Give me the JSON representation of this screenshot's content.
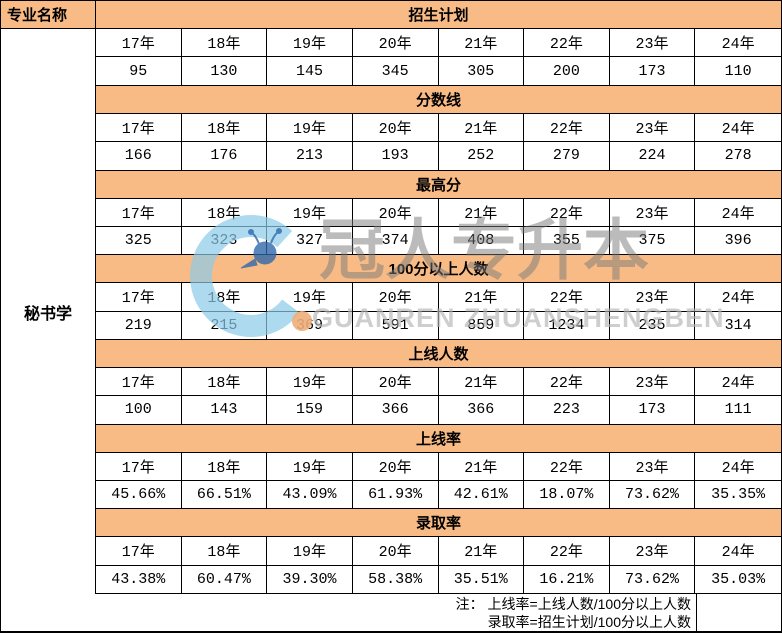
{
  "table": {
    "corner_header": "专业名称",
    "major_name": "秘书学"
  },
  "years": [
    "17年",
    "18年",
    "19年",
    "20年",
    "21年",
    "22年",
    "23年",
    "24年"
  ],
  "sections": [
    {
      "title": "招生计划",
      "values": [
        "95",
        "130",
        "145",
        "345",
        "305",
        "200",
        "173",
        "110"
      ]
    },
    {
      "title": "分数线",
      "values": [
        "166",
        "176",
        "213",
        "193",
        "252",
        "279",
        "224",
        "278"
      ]
    },
    {
      "title": "最高分",
      "values": [
        "325",
        "323",
        "327",
        "374",
        "408",
        "355",
        "375",
        "396"
      ]
    },
    {
      "title": "100分以上人数",
      "values": [
        "219",
        "215",
        "369",
        "591",
        "859",
        "1234",
        "235",
        "314"
      ]
    },
    {
      "title": "上线人数",
      "values": [
        "100",
        "143",
        "159",
        "366",
        "366",
        "223",
        "173",
        "111"
      ]
    },
    {
      "title": "上线率",
      "values": [
        "45.66%",
        "66.51%",
        "43.09%",
        "61.93%",
        "42.61%",
        "18.07%",
        "73.62%",
        "35.35%"
      ]
    },
    {
      "title": "录取率",
      "values": [
        "43.38%",
        "60.47%",
        "39.30%",
        "58.38%",
        "35.51%",
        "16.21%",
        "73.62%",
        "35.03%"
      ]
    }
  ],
  "notes": {
    "line1": "注： 上线率=上线人数/100分以上人数",
    "line2": "录取率=招生计划/100分以上人数"
  },
  "watermark": {
    "logo": "guanren-logo",
    "cn": "冠人专升本",
    "en": "GUANREN ZHUANSHENGBEN"
  },
  "colors": {
    "header_bg": "#F8BB86",
    "border": "#000000",
    "text": "#000000",
    "watermark_blue": "#8CCBE8",
    "watermark_dark_blue": "#2B66A8",
    "watermark_orange": "#F0AE7A",
    "watermark_gray": "#7A7A7A",
    "watermark_light_gray": "#B5B5B5"
  }
}
